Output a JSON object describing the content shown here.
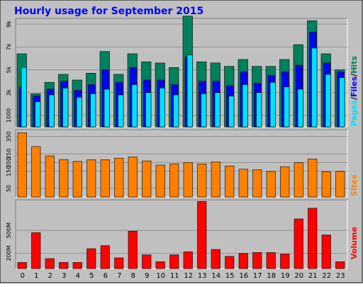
{
  "title": "Hourly usage for September 2015",
  "colors": {
    "background": "#c0c0c0",
    "title": "#0000ff",
    "hits": "#00805c",
    "files": "#0000ff",
    "pages": "#00e0ff",
    "sites": "#ff8000",
    "volume": "#ff0000"
  },
  "chart_data": [
    {
      "type": "bar",
      "name": "hits-files-pages",
      "categories": [
        "0",
        "1",
        "2",
        "3",
        "4",
        "5",
        "6",
        "7",
        "8",
        "9",
        "10",
        "11",
        "12",
        "13",
        "14",
        "15",
        "16",
        "17",
        "18",
        "19",
        "20",
        "21",
        "22",
        "23"
      ],
      "ylabel_parts": [
        "Pages",
        "/",
        "Files",
        "/",
        "Hits"
      ],
      "yticks": [
        "1000",
        "3k",
        "5k",
        "7k",
        "9k"
      ],
      "ytick_values": [
        1000,
        3000,
        5000,
        7000,
        9000
      ],
      "ylim": [
        0,
        9500
      ],
      "series": [
        {
          "name": "Hits",
          "values": [
            6400,
            2900,
            3900,
            4600,
            4100,
            4700,
            6600,
            4600,
            6400,
            5700,
            5600,
            5200,
            9700,
            5700,
            5600,
            5300,
            5900,
            5300,
            5300,
            5900,
            7200,
            9300,
            6400,
            5000
          ]
        },
        {
          "name": "Files",
          "values": [
            3500,
            2700,
            3300,
            4000,
            3200,
            3700,
            5000,
            3900,
            5200,
            4100,
            4100,
            3700,
            6100,
            4000,
            4000,
            3600,
            4800,
            3800,
            4500,
            4800,
            5400,
            8300,
            5600,
            4800
          ]
        },
        {
          "name": "Pages",
          "values": [
            5200,
            2200,
            2800,
            3400,
            2600,
            2900,
            3300,
            2800,
            3700,
            3000,
            3400,
            2800,
            6300,
            2900,
            3000,
            2700,
            3700,
            3000,
            3900,
            3500,
            3300,
            6900,
            4600,
            4300
          ]
        }
      ]
    },
    {
      "type": "bar",
      "name": "sites",
      "categories": [
        "0",
        "1",
        "2",
        "3",
        "4",
        "5",
        "6",
        "7",
        "8",
        "9",
        "10",
        "11",
        "12",
        "13",
        "14",
        "15",
        "16",
        "17",
        "18",
        "19",
        "20",
        "21",
        "22",
        "23"
      ],
      "ylabel": "Sites",
      "yticks": [
        "50",
        "150",
        "200",
        "250",
        "350"
      ],
      "ytick_values": [
        50,
        150,
        200,
        250,
        350
      ],
      "ylim": [
        0,
        390
      ],
      "series": [
        {
          "name": "Sites",
          "values": [
            372,
            292,
            238,
            217,
            206,
            216,
            216,
            225,
            232,
            209,
            185,
            192,
            200,
            191,
            203,
            180,
            161,
            158,
            148,
            176,
            199,
            220,
            147,
            148
          ]
        }
      ]
    },
    {
      "type": "bar",
      "name": "volume",
      "categories": [
        "0",
        "1",
        "2",
        "3",
        "4",
        "5",
        "6",
        "7",
        "8",
        "9",
        "10",
        "11",
        "12",
        "13",
        "14",
        "15",
        "16",
        "17",
        "18",
        "19",
        "20",
        "21",
        "22",
        "23"
      ],
      "ylabel": "Volume",
      "yticks": [
        "200M",
        "500M"
      ],
      "ytick_values": [
        200,
        500
      ],
      "ylim": [
        0,
        900
      ],
      "series": [
        {
          "name": "Volume",
          "values": [
            80,
            470,
            130,
            80,
            80,
            260,
            300,
            140,
            490,
            180,
            90,
            180,
            220,
            880,
            250,
            160,
            200,
            210,
            210,
            190,
            650,
            790,
            440,
            90
          ]
        }
      ]
    }
  ]
}
